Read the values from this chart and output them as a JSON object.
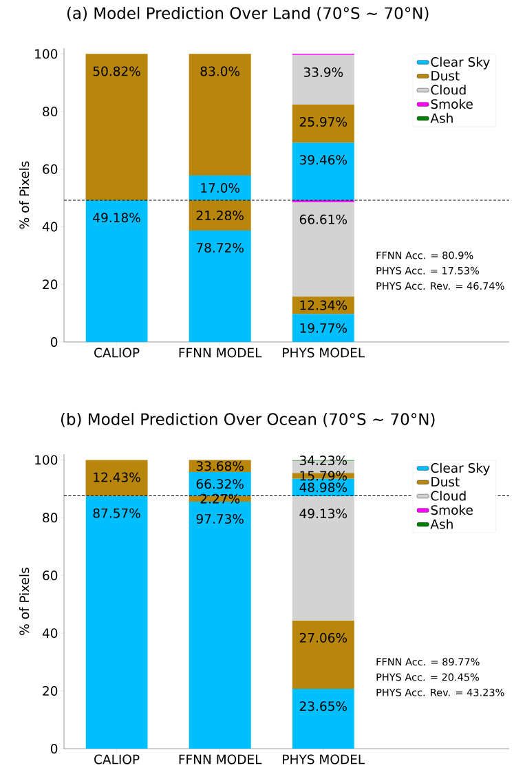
{
  "chart_data": [
    {
      "type": "bar",
      "title": "(a) Model Prediction Over Land (70°S ~ 70°N)",
      "ylabel": "% of Pixels",
      "stacked": true,
      "legend": "top right",
      "categories": [
        "CALIOP",
        "FFNN MODEL",
        "PHYS MODEL"
      ],
      "ylim": [
        0,
        102
      ],
      "yticks": [
        0,
        20,
        40,
        60,
        80,
        100
      ],
      "series": [
        {
          "name": "Clear Sky",
          "color": "#00bfff",
          "values": [
            49.18,
            38.71,
            9.72
          ]
        },
        {
          "name": "Dust",
          "color": "#b8860b",
          "values": [
            null,
            10.47,
            6.07
          ]
        },
        {
          "name": "Cloud",
          "color": "#d3d3d3",
          "values": [
            null,
            null,
            32.76
          ]
        },
        {
          "name": "Smoke",
          "color": "#ff00ff",
          "values": [
            null,
            null,
            0.63
          ]
        },
        {
          "name": "Ash",
          "color": "#008000",
          "values": [
            null,
            null,
            null
          ]
        },
        {
          "color": "#00bfff",
          "values": [
            null,
            8.64,
            20.05
          ]
        },
        {
          "color": "#b8860b",
          "values": [
            50.82,
            42.18,
            13.2
          ]
        },
        {
          "color": "#d3d3d3",
          "values": [
            null,
            null,
            17.23
          ]
        },
        {
          "color": "#ff00ff",
          "values": [
            null,
            null,
            0.34
          ]
        }
      ],
      "ref_lines": [
        {
          "axis": "y",
          "value": 49.18,
          "color": "#000000",
          "line_style": "dashed"
        }
      ],
      "annotations": [
        {
          "text": "49.18%",
          "x": "CALIOP",
          "y": 49.18
        },
        {
          "text": "50.82%",
          "x": "CALIOP",
          "y": 100.0
        },
        {
          "text": "78.72%",
          "x": "FFNN MODEL",
          "y": 38.71
        },
        {
          "text": "21.28%",
          "x": "FFNN MODEL",
          "y": 49.18
        },
        {
          "text": "17.0%",
          "x": "FFNN MODEL",
          "y": 57.82
        },
        {
          "text": "83.0%",
          "x": "FFNN MODEL",
          "y": 100.0
        },
        {
          "text": "19.77%",
          "x": "PHYS MODEL",
          "y": 9.72
        },
        {
          "text": "12.34%",
          "x": "PHYS MODEL",
          "y": 15.79
        },
        {
          "text": "66.61%",
          "x": "PHYS MODEL",
          "y": 48.55
        },
        {
          "text": "39.46%",
          "x": "PHYS MODEL",
          "y": 69.23
        },
        {
          "text": "25.97%",
          "x": "PHYS MODEL",
          "y": 82.43
        },
        {
          "text": "33.9%",
          "x": "PHYS MODEL",
          "y": 99.66
        },
        "FFNN Acc. = 80.9%",
        "PHYS Acc. = 17.53%",
        "PHYS Acc. Rev. = 46.74%"
      ]
    },
    {
      "type": "bar",
      "title": "(b) Model Prediction Over Ocean (70°S ~ 70°N)",
      "ylabel": "% of Pixels",
      "stacked": true,
      "legend": "top right",
      "categories": [
        "CALIOP",
        "FFNN MODEL",
        "PHYS MODEL"
      ],
      "ylim": [
        0,
        102
      ],
      "yticks": [
        0,
        20,
        40,
        60,
        80,
        100
      ],
      "series": [
        {
          "name": "Clear Sky",
          "color": "#00bfff",
          "values": [
            87.57,
            85.58,
            20.71
          ]
        },
        {
          "name": "Dust",
          "color": "#b8860b",
          "values": [
            null,
            1.99,
            23.7
          ]
        },
        {
          "name": "Cloud",
          "color": "#d3d3d3",
          "values": [
            null,
            null,
            43.02
          ]
        },
        {
          "name": "Smoke",
          "color": "#ff00ff",
          "values": [
            null,
            null,
            null
          ]
        },
        {
          "name": "Ash",
          "color": "#008000",
          "values": [
            null,
            null,
            null
          ]
        },
        {
          "color": "#00bfff",
          "values": [
            null,
            8.24,
            6.09
          ]
        },
        {
          "color": "#b8860b",
          "values": [
            12.43,
            4.19,
            1.96
          ]
        },
        {
          "color": "#d3d3d3",
          "values": [
            null,
            null,
            4.25
          ]
        },
        {
          "color": "#008000",
          "values": [
            null,
            null,
            0.2
          ]
        }
      ],
      "ref_lines": [
        {
          "axis": "y",
          "value": 87.57,
          "color": "#000000",
          "line_style": "dashed"
        }
      ],
      "annotations": [
        {
          "text": "87.57%",
          "x": "CALIOP",
          "y": 87.57
        },
        {
          "text": "12.43%",
          "x": "CALIOP",
          "y": 100.0
        },
        {
          "text": "97.73%",
          "x": "FFNN MODEL",
          "y": 85.58
        },
        {
          "text": "2.27%",
          "x": "FFNN MODEL",
          "y": 87.57
        },
        {
          "text": "66.32%",
          "x": "FFNN MODEL",
          "y": 95.81
        },
        {
          "text": "33.68%",
          "x": "FFNN MODEL",
          "y": 100.0
        },
        {
          "text": "23.65%",
          "x": "PHYS MODEL",
          "y": 20.71
        },
        {
          "text": "27.06%",
          "x": "PHYS MODEL",
          "y": 44.41
        },
        {
          "text": "49.13%",
          "x": "PHYS MODEL",
          "y": 87.43
        },
        {
          "text": "48.98%",
          "x": "PHYS MODEL",
          "y": 93.66
        },
        {
          "text": "15.79%",
          "x": "PHYS MODEL",
          "y": 95.62
        },
        {
          "text": "34.23%",
          "x": "PHYS MODEL",
          "y": 99.87
        },
        "FFNN Acc. = 89.77%",
        "PHYS Acc. = 20.45%",
        "PHYS Acc. Rev. = 43.23%"
      ]
    }
  ]
}
